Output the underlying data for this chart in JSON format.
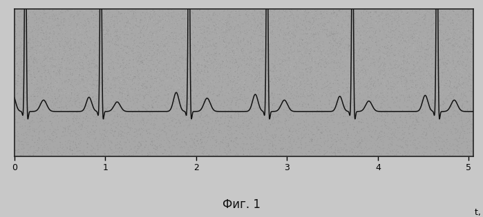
{
  "caption": "Фиг. 1",
  "xlabel": "t, c",
  "xticks": [
    0,
    1,
    2,
    3,
    4,
    5
  ],
  "xlim": [
    0,
    5.05
  ],
  "ylim": [
    -0.55,
    1.0
  ],
  "plot_bg": "#a8a8a8",
  "outer_bg": "#c8c8c8",
  "line_color": "#111111",
  "line_width": 1.1,
  "ecg_beats": [
    {
      "t": 0.12,
      "p_amp": 0.18,
      "r_amp": 2.2,
      "t_amp": 0.12,
      "p_off": -0.14,
      "t_off": 0.2
    },
    {
      "t": 0.95,
      "p_amp": 0.15,
      "r_amp": 2.2,
      "t_amp": 0.1,
      "p_off": -0.13,
      "t_off": 0.18
    },
    {
      "t": 1.92,
      "p_amp": 0.2,
      "r_amp": 2.3,
      "t_amp": 0.14,
      "p_off": -0.14,
      "t_off": 0.2
    },
    {
      "t": 2.78,
      "p_amp": 0.18,
      "r_amp": 2.2,
      "t_amp": 0.12,
      "p_off": -0.13,
      "t_off": 0.19
    },
    {
      "t": 3.72,
      "p_amp": 0.16,
      "r_amp": 2.2,
      "t_amp": 0.11,
      "p_off": -0.14,
      "t_off": 0.18
    },
    {
      "t": 4.65,
      "p_amp": 0.17,
      "r_amp": 2.2,
      "t_amp": 0.12,
      "p_off": -0.13,
      "t_off": 0.19
    }
  ],
  "noise_seed": 77,
  "noise_points": 15000,
  "noise_alpha": 0.18
}
